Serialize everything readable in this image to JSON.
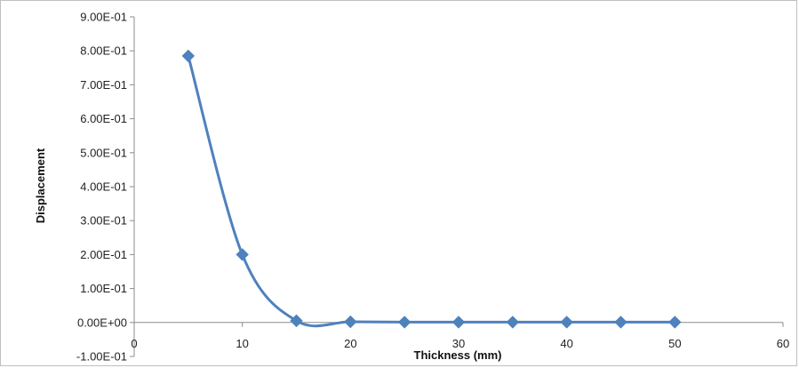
{
  "chart_data": {
    "type": "scatter",
    "title": "",
    "xlabel": "Thickness (mm)",
    "ylabel": "Displacement",
    "xlim": [
      0,
      60
    ],
    "ylim": [
      -0.1,
      0.9
    ],
    "x_ticks": [
      0,
      10,
      20,
      30,
      40,
      50,
      60
    ],
    "x_tick_labels": [
      "0",
      "10",
      "20",
      "30",
      "40",
      "50",
      "60"
    ],
    "y_ticks": [
      -0.1,
      0.0,
      0.1,
      0.2,
      0.3,
      0.4,
      0.5,
      0.6,
      0.7,
      0.8,
      0.9
    ],
    "y_tick_labels": [
      "-1.00E-01",
      "0.00E+00",
      "1.00E-01",
      "2.00E-01",
      "3.00E-01",
      "4.00E-01",
      "5.00E-01",
      "6.00E-01",
      "7.00E-01",
      "8.00E-01",
      "9.00E-01"
    ],
    "grid": false,
    "legend": "none",
    "line_style": "smoothed line with diamond markers",
    "series": [
      {
        "color": "#4f81bd",
        "x": [
          5,
          10,
          15,
          20,
          25,
          30,
          35,
          40,
          45,
          50
        ],
        "y": [
          0.785,
          0.2,
          0.005,
          0.002,
          0.001,
          0.001,
          0.001,
          0.001,
          0.001,
          0.001
        ]
      }
    ]
  }
}
